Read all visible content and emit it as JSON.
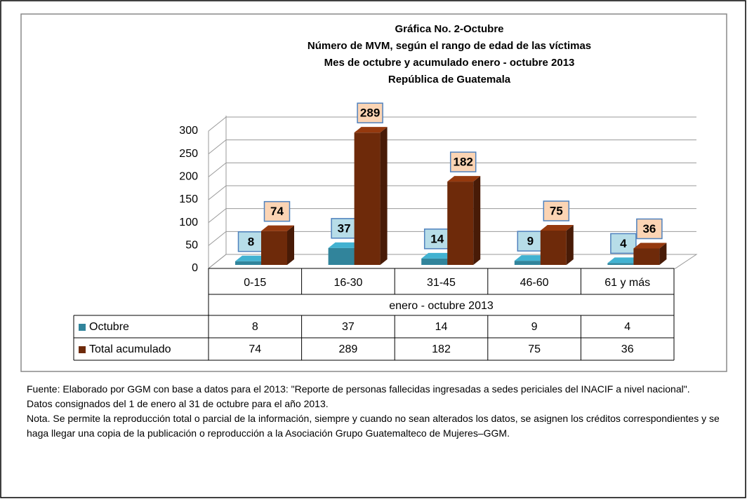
{
  "chart_data": {
    "type": "bar",
    "title_lines": [
      "Gráfica No. 2-Octubre",
      "Número de MVM, según el rango de edad de las víctimas",
      "Mes de octubre y acumulado enero - octubre 2013",
      "República de Guatemala"
    ],
    "categories": [
      "0-15",
      "16-30",
      "31-45",
      "46-60",
      "61 y más"
    ],
    "x_group_label": "enero - octubre 2013",
    "series": [
      {
        "name": "Octubre",
        "color": "#31849b",
        "values": [
          8,
          37,
          14,
          9,
          4
        ]
      },
      {
        "name": "Total acumulado",
        "color": "#6e2a0a",
        "values": [
          74,
          289,
          182,
          75,
          36
        ]
      }
    ],
    "ylim": [
      0,
      300
    ],
    "yticks": [
      0,
      50,
      100,
      150,
      200,
      250,
      300
    ],
    "grid": true,
    "legend": "table"
  },
  "notes": [
    "Fuente: Elaborado por GGM con base a datos para el 2013: \"Reporte de personas fallecidas ingresadas a sedes periciales del INACIF a nivel nacional\".",
    "Datos consignados del 1 de enero al 31 de octubre para el año 2013.",
    "Nota. Se permite la reproducción total o parcial de la información, siempre y cuando no sean alterados los datos,  se asignen los créditos correspondientes y se haga llegar una copia de la publicación o reproducción a la Asociación Grupo Guatemalteco de Mujeres–GGM."
  ]
}
